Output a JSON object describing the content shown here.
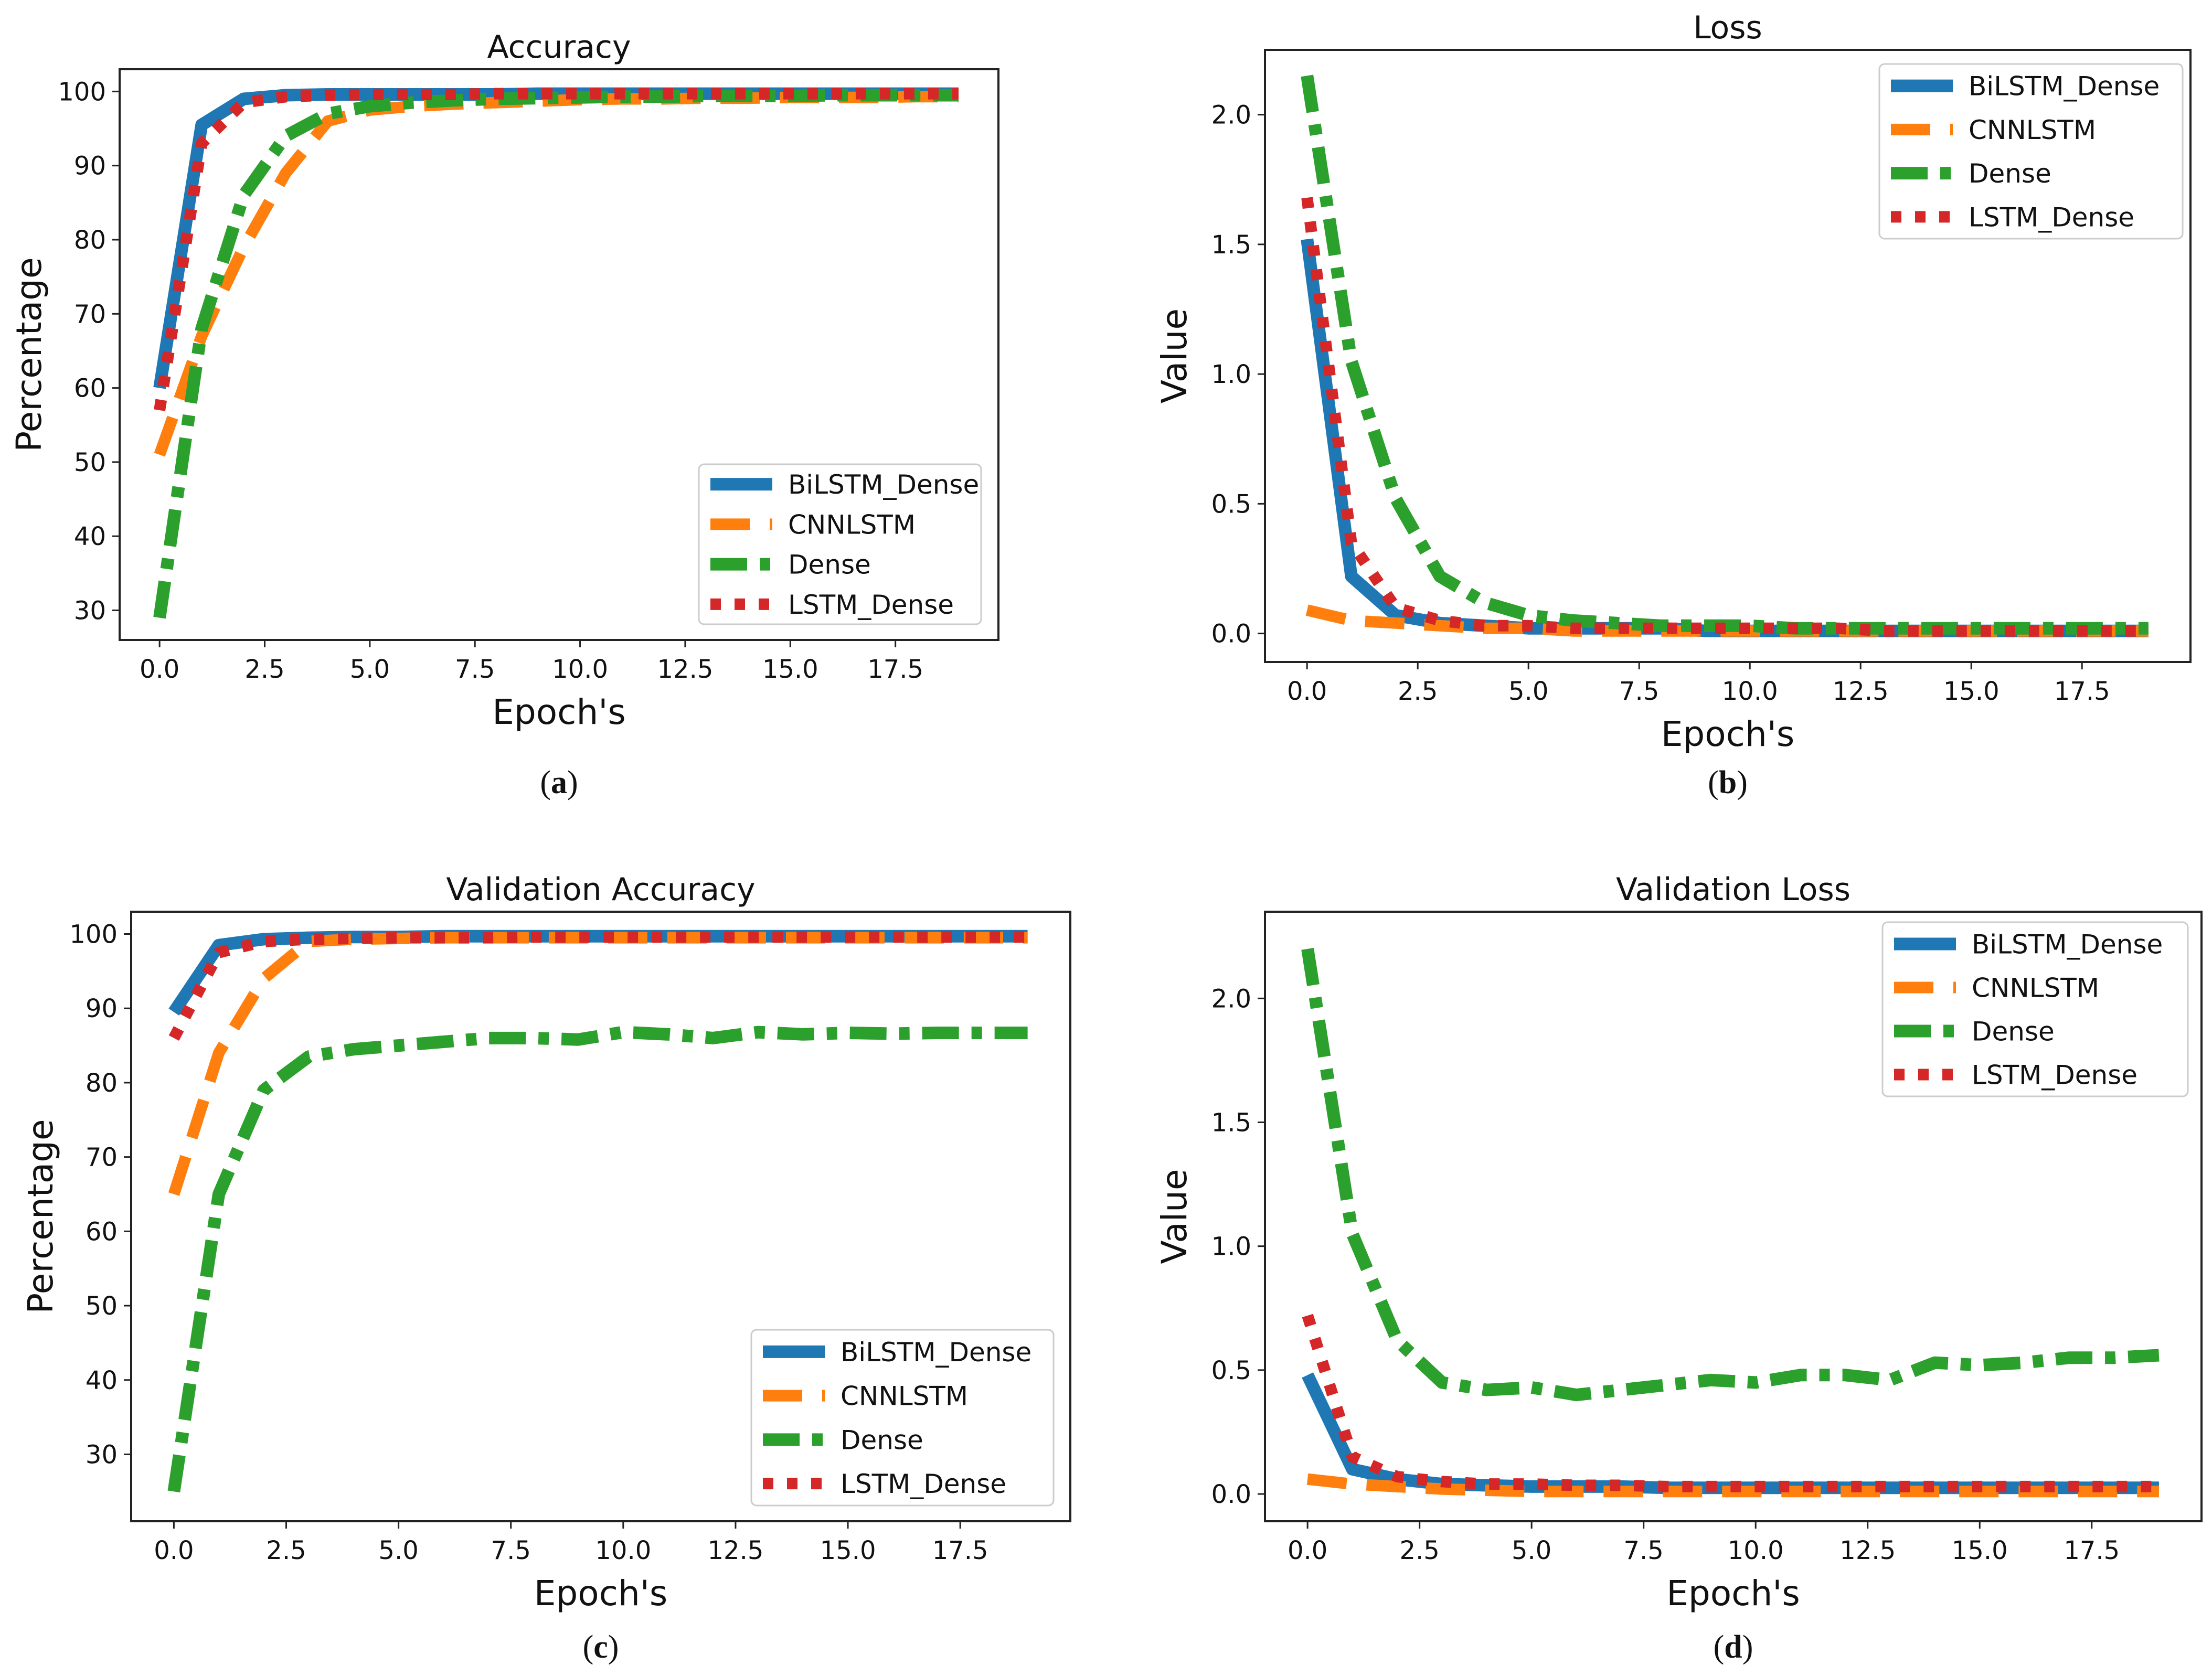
{
  "colors": {
    "BiLSTM_Dense": "#1f77b4",
    "CNNLSTM": "#ff7f0e",
    "Dense": "#2ca02c",
    "LSTM_Dense": "#d62728"
  },
  "chart_data": [
    {
      "type": "line",
      "title": "Accuracy",
      "xlabel": "Epoch's",
      "ylabel": "Percentage",
      "caption": "(a)",
      "xlim": [
        -0.95,
        19.95
      ],
      "ylim": [
        26,
        103
      ],
      "xticks": [
        "0.0",
        "2.5",
        "5.0",
        "7.5",
        "10.0",
        "12.5",
        "15.0",
        "17.5"
      ],
      "yticks": [
        "30",
        "40",
        "50",
        "60",
        "70",
        "80",
        "90",
        "100"
      ],
      "legend_position": "lower-right",
      "x": [
        0,
        1,
        2,
        3,
        4,
        5,
        6,
        7,
        8,
        9,
        10,
        11,
        12,
        13,
        14,
        15,
        16,
        17,
        18,
        19
      ],
      "series": [
        {
          "name": "BiLSTM_Dense",
          "values": [
            60,
            95.5,
            99,
            99.5,
            99.6,
            99.6,
            99.6,
            99.6,
            99.6,
            99.7,
            99.7,
            99.7,
            99.7,
            99.7,
            99.7,
            99.7,
            99.7,
            99.7,
            99.7,
            99.7
          ]
        },
        {
          "name": "CNNLSTM",
          "values": [
            51,
            67,
            79,
            89,
            96,
            97.5,
            98,
            98.3,
            98.5,
            98.7,
            98.9,
            99,
            99,
            99.1,
            99.1,
            99.2,
            99.2,
            99.2,
            99.3,
            99.3
          ]
        },
        {
          "name": "Dense",
          "values": [
            29,
            68,
            86,
            94,
            97,
            98,
            98.5,
            98.8,
            99,
            99.1,
            99.2,
            99.3,
            99.3,
            99.4,
            99.4,
            99.4,
            99.5,
            99.5,
            99.5,
            99.5
          ]
        },
        {
          "name": "LSTM_Dense",
          "values": [
            57,
            93,
            98.5,
            99.3,
            99.5,
            99.6,
            99.6,
            99.6,
            99.7,
            99.7,
            99.7,
            99.7,
            99.7,
            99.7,
            99.7,
            99.7,
            99.7,
            99.7,
            99.7,
            99.7
          ]
        }
      ]
    },
    {
      "type": "line",
      "title": "Loss",
      "xlabel": "Epoch's",
      "ylabel": "Value",
      "caption": "(b)",
      "xlim": [
        -0.95,
        19.95
      ],
      "ylim": [
        -0.11,
        2.25
      ],
      "xticks": [
        "0.0",
        "2.5",
        "5.0",
        "7.5",
        "10.0",
        "12.5",
        "15.0",
        "17.5"
      ],
      "yticks": [
        "0.0",
        "0.5",
        "1.0",
        "1.5",
        "2.0"
      ],
      "legend_position": "upper-right",
      "x": [
        0,
        1,
        2,
        3,
        4,
        5,
        6,
        7,
        8,
        9,
        10,
        11,
        12,
        13,
        14,
        15,
        16,
        17,
        18,
        19
      ],
      "series": [
        {
          "name": "BiLSTM_Dense",
          "values": [
            1.52,
            0.22,
            0.07,
            0.04,
            0.03,
            0.02,
            0.02,
            0.02,
            0.02,
            0.01,
            0.01,
            0.01,
            0.01,
            0.01,
            0.01,
            0.01,
            0.01,
            0.01,
            0.01,
            0.01
          ]
        },
        {
          "name": "CNNLSTM",
          "values": [
            0.09,
            0.05,
            0.04,
            0.03,
            0.02,
            0.02,
            0.01,
            0.01,
            0.01,
            0.01,
            0.01,
            0.01,
            0.01,
            0.01,
            0.01,
            0.01,
            0.01,
            0.01,
            0.01,
            0.01
          ]
        },
        {
          "name": "Dense",
          "values": [
            2.15,
            1.05,
            0.52,
            0.22,
            0.12,
            0.07,
            0.05,
            0.04,
            0.03,
            0.03,
            0.03,
            0.02,
            0.02,
            0.02,
            0.02,
            0.02,
            0.02,
            0.02,
            0.02,
            0.02
          ]
        },
        {
          "name": "LSTM_Dense",
          "values": [
            1.68,
            0.35,
            0.1,
            0.05,
            0.03,
            0.03,
            0.02,
            0.02,
            0.02,
            0.02,
            0.02,
            0.02,
            0.02,
            0.01,
            0.01,
            0.01,
            0.01,
            0.01,
            0.01,
            0.01
          ]
        }
      ]
    },
    {
      "type": "line",
      "title": "Validation Accuracy",
      "xlabel": "Epoch's",
      "ylabel": "Percentage",
      "caption": "(c)",
      "xlim": [
        -0.95,
        19.95
      ],
      "ylim": [
        21,
        103
      ],
      "xticks": [
        "0.0",
        "2.5",
        "5.0",
        "7.5",
        "10.0",
        "12.5",
        "15.0",
        "17.5"
      ],
      "yticks": [
        "30",
        "40",
        "50",
        "60",
        "70",
        "80",
        "90",
        "100"
      ],
      "legend_position": "lower-right",
      "x": [
        0,
        1,
        2,
        3,
        4,
        5,
        6,
        7,
        8,
        9,
        10,
        11,
        12,
        13,
        14,
        15,
        16,
        17,
        18,
        19
      ],
      "series": [
        {
          "name": "BiLSTM_Dense",
          "values": [
            89.5,
            98.5,
            99.3,
            99.5,
            99.6,
            99.6,
            99.7,
            99.7,
            99.7,
            99.7,
            99.7,
            99.7,
            99.7,
            99.7,
            99.7,
            99.7,
            99.7,
            99.7,
            99.7,
            99.7
          ]
        },
        {
          "name": "CNNLSTM",
          "values": [
            65,
            84,
            94,
            99,
            99.3,
            99.4,
            99.5,
            99.5,
            99.5,
            99.5,
            99.5,
            99.5,
            99.5,
            99.5,
            99.5,
            99.5,
            99.5,
            99.5,
            99.5,
            99.5
          ]
        },
        {
          "name": "Dense",
          "values": [
            25,
            65,
            79,
            83.5,
            84.5,
            85,
            85.5,
            86,
            86,
            85.8,
            86.8,
            86.5,
            86,
            86.8,
            86.5,
            86.7,
            86.6,
            86.7,
            86.7,
            86.7
          ]
        },
        {
          "name": "LSTM_Dense",
          "values": [
            86,
            97.5,
            99,
            99.3,
            99.4,
            99.5,
            99.5,
            99.5,
            99.6,
            99.6,
            99.6,
            99.6,
            99.6,
            99.6,
            99.6,
            99.6,
            99.6,
            99.6,
            99.6,
            99.6
          ]
        }
      ]
    },
    {
      "type": "line",
      "title": "Validation Loss",
      "xlabel": "Epoch's",
      "ylabel": "Value",
      "caption": "(d)",
      "xlim": [
        -0.95,
        19.95
      ],
      "ylim": [
        -0.11,
        2.35
      ],
      "xticks": [
        "0.0",
        "2.5",
        "5.0",
        "7.5",
        "10.0",
        "12.5",
        "15.0",
        "17.5"
      ],
      "yticks": [
        "0.0",
        "0.5",
        "1.0",
        "1.5",
        "2.0"
      ],
      "legend_position": "upper-right",
      "x": [
        0,
        1,
        2,
        3,
        4,
        5,
        6,
        7,
        8,
        9,
        10,
        11,
        12,
        13,
        14,
        15,
        16,
        17,
        18,
        19
      ],
      "series": [
        {
          "name": "BiLSTM_Dense",
          "values": [
            0.48,
            0.1,
            0.06,
            0.04,
            0.035,
            0.03,
            0.03,
            0.03,
            0.025,
            0.025,
            0.025,
            0.025,
            0.025,
            0.025,
            0.025,
            0.025,
            0.025,
            0.025,
            0.025,
            0.025
          ]
        },
        {
          "name": "CNNLSTM",
          "values": [
            0.06,
            0.04,
            0.03,
            0.02,
            0.015,
            0.01,
            0.01,
            0.01,
            0.01,
            0.01,
            0.01,
            0.01,
            0.01,
            0.01,
            0.01,
            0.01,
            0.01,
            0.01,
            0.01,
            0.01
          ]
        },
        {
          "name": "Dense",
          "values": [
            2.2,
            1.05,
            0.62,
            0.45,
            0.42,
            0.43,
            0.4,
            0.42,
            0.44,
            0.46,
            0.45,
            0.48,
            0.48,
            0.46,
            0.53,
            0.52,
            0.53,
            0.55,
            0.55,
            0.56
          ]
        },
        {
          "name": "LSTM_Dense",
          "values": [
            0.72,
            0.15,
            0.07,
            0.05,
            0.04,
            0.04,
            0.035,
            0.035,
            0.03,
            0.03,
            0.03,
            0.03,
            0.03,
            0.03,
            0.03,
            0.03,
            0.03,
            0.03,
            0.03,
            0.03
          ]
        }
      ]
    }
  ]
}
